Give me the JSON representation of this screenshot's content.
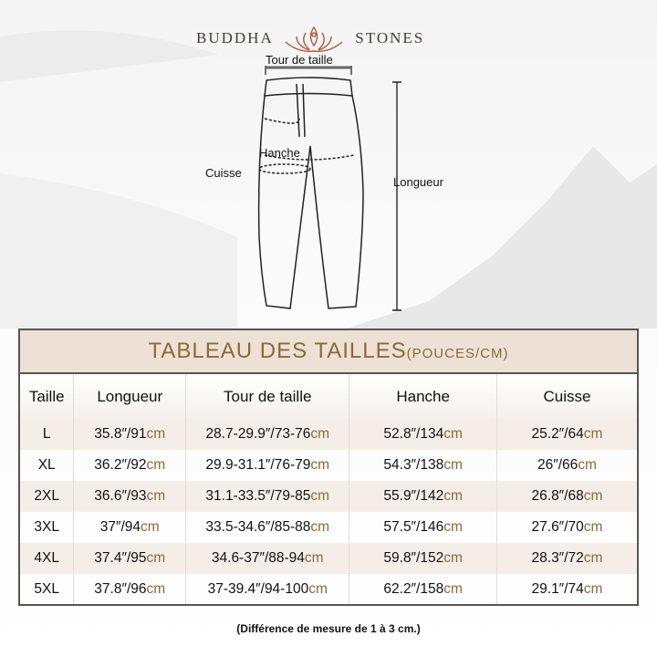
{
  "brand": {
    "left": "BUDDHA",
    "right": "STONES"
  },
  "diagram": {
    "waist": "Tour de taille",
    "hip": "Hanche",
    "thigh": "Cuisse",
    "length": "Longueur"
  },
  "table": {
    "title": "TABLEAU DES TAILLES",
    "title_unit": "(POUCES/CM)",
    "headers": [
      "Taille",
      "Longueur",
      "Tour de taille",
      "Hanche",
      "Cuisse"
    ],
    "rows": [
      {
        "size": "L",
        "c": [
          [
            "35.8″/91",
            "cm"
          ],
          [
            "28.7-29.9″/73-76",
            "cm"
          ],
          [
            "52.8″/134",
            "cm"
          ],
          [
            "25.2″/64",
            "cm"
          ]
        ]
      },
      {
        "size": "XL",
        "c": [
          [
            "36.2″/92",
            "cm"
          ],
          [
            "29.9-31.1″/76-79",
            "cm"
          ],
          [
            "54.3″/138",
            "cm"
          ],
          [
            "26″/66",
            "cm"
          ]
        ]
      },
      {
        "size": "2XL",
        "c": [
          [
            "36.6″/93",
            "cm"
          ],
          [
            "31.1-33.5″/79-85",
            "cm"
          ],
          [
            "55.9″/142",
            "cm"
          ],
          [
            "26.8″/68",
            "cm"
          ]
        ]
      },
      {
        "size": "3XL",
        "c": [
          [
            "37″/94",
            "cm"
          ],
          [
            "33.5-34.6″/85-88",
            "cm"
          ],
          [
            "57.5″/146",
            "cm"
          ],
          [
            "27.6″/70",
            "cm"
          ]
        ]
      },
      {
        "size": "4XL",
        "c": [
          [
            "37.4″/95",
            "cm"
          ],
          [
            "34.6-37″/88-94",
            "cm"
          ],
          [
            "59.8″/152",
            "cm"
          ],
          [
            "28.3″/72",
            "cm"
          ]
        ]
      },
      {
        "size": "5XL",
        "c": [
          [
            "37.8″/96",
            "cm"
          ],
          [
            "37-39.4″/94-100",
            "cm"
          ],
          [
            "62.2″/158",
            "cm"
          ],
          [
            "29.1″/74",
            "cm"
          ]
        ]
      }
    ]
  },
  "note": "(Différence de mesure de 1 à 3 cm.)",
  "colors": {
    "accent": "#8a6a36",
    "title_bg": "#ede1d6",
    "logo": "#b5563a"
  }
}
